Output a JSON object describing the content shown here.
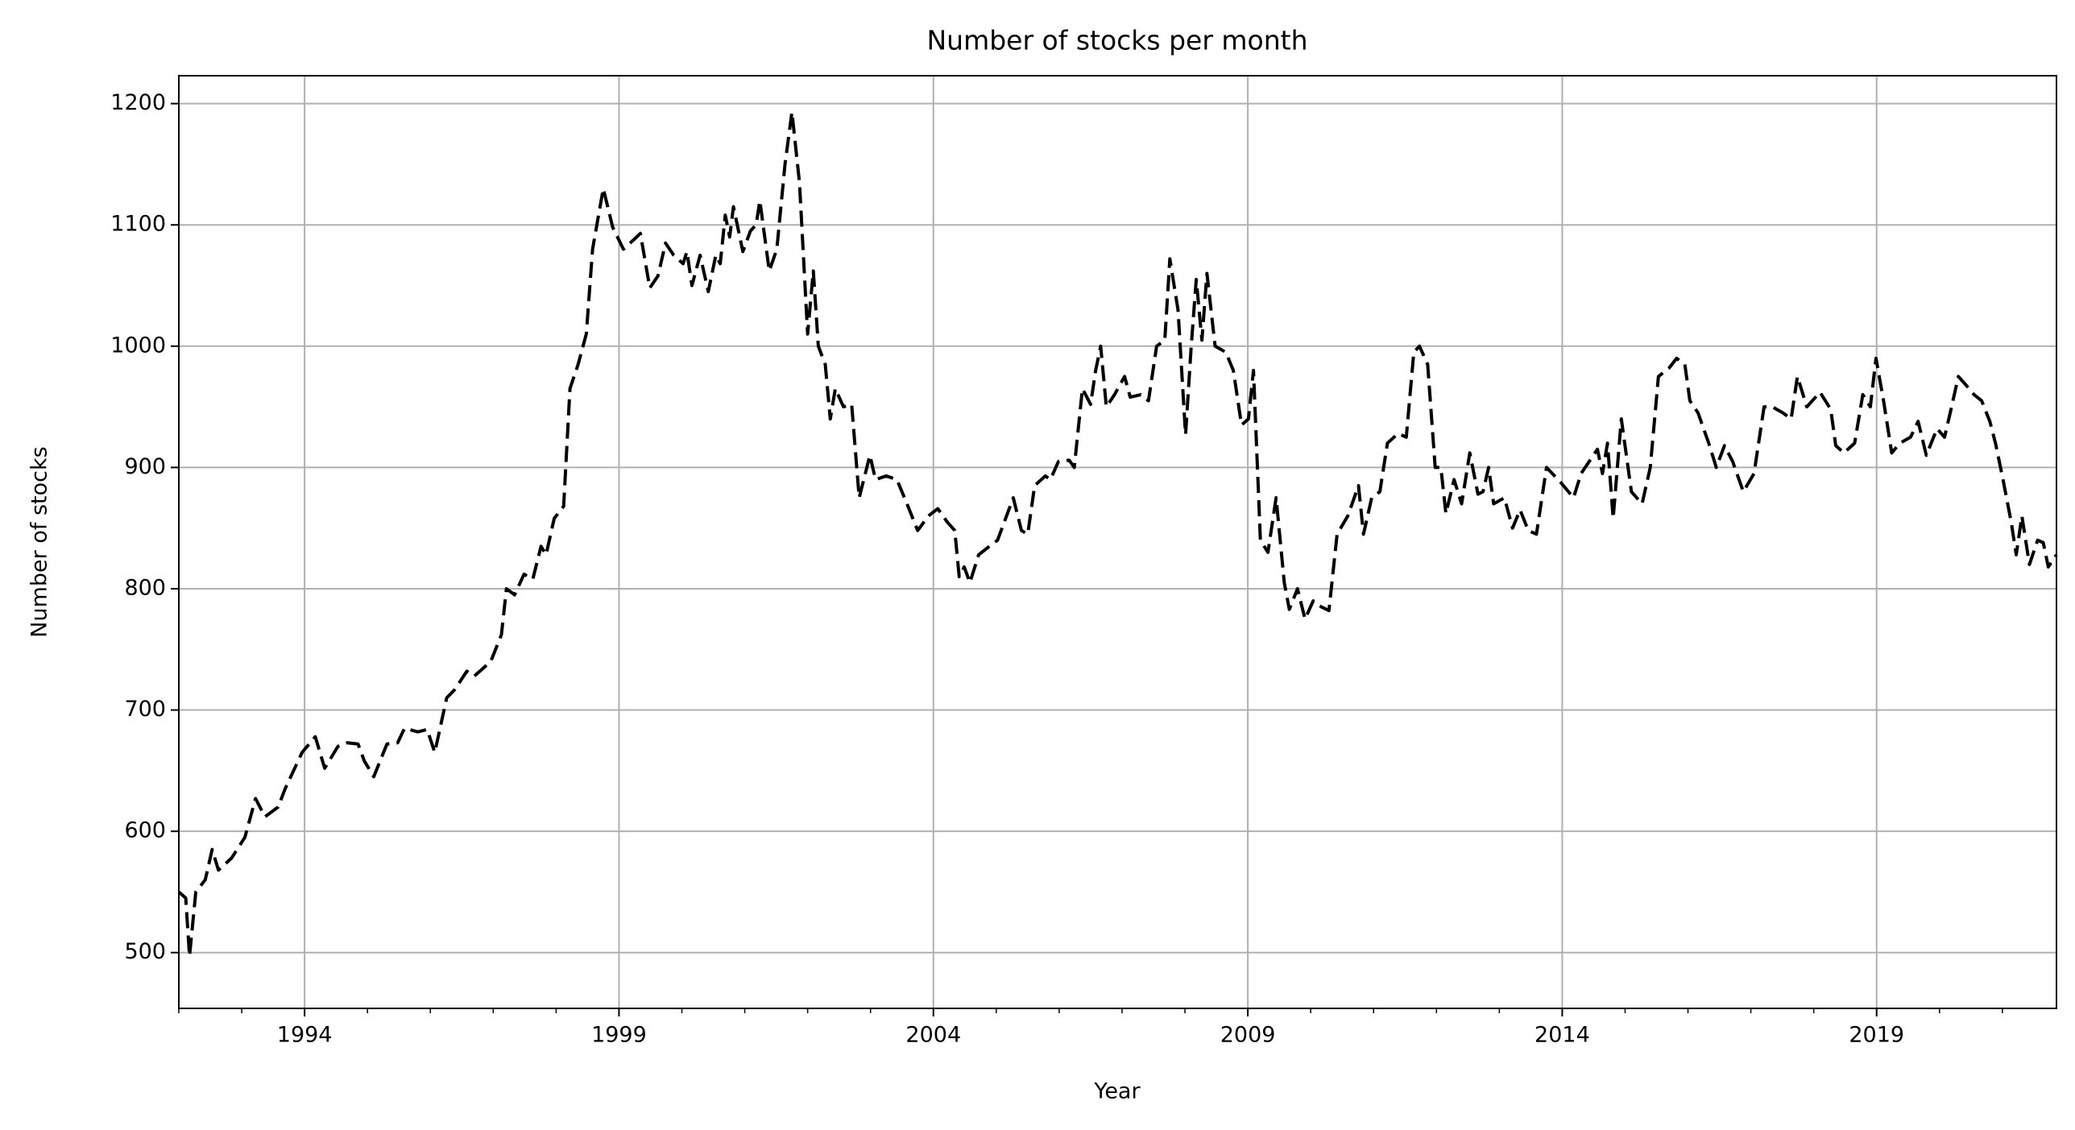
{
  "chart_data": {
    "type": "line",
    "title": "Number of stocks per month",
    "xlabel": "Year",
    "ylabel": "Number of stocks",
    "x": [
      1992.0,
      1992.11,
      1992.17,
      1992.27,
      1992.42,
      1992.53,
      1992.63,
      1992.84,
      1993.05,
      1993.22,
      1993.37,
      1993.58,
      1993.69,
      1993.96,
      1994.17,
      1994.32,
      1994.53,
      1994.68,
      1994.85,
      1994.95,
      1995.1,
      1995.31,
      1995.48,
      1995.59,
      1995.8,
      1995.95,
      1996.07,
      1996.26,
      1996.39,
      1996.58,
      1996.7,
      1996.96,
      1997.13,
      1997.21,
      1997.34,
      1997.49,
      1997.63,
      1997.76,
      1997.84,
      1997.97,
      1998.12,
      1998.22,
      1998.35,
      1998.48,
      1998.58,
      1998.75,
      1998.9,
      1999.07,
      1999.24,
      1999.34,
      1999.49,
      1999.62,
      1999.74,
      1999.87,
      2000.02,
      2000.08,
      2000.16,
      2000.29,
      2000.42,
      2000.54,
      2000.61,
      2000.69,
      2000.76,
      2000.82,
      2000.97,
      2001.09,
      2001.18,
      2001.24,
      2001.39,
      2001.51,
      2001.64,
      2001.75,
      2001.87,
      2002.0,
      2002.09,
      2002.17,
      2002.28,
      2002.36,
      2002.44,
      2002.57,
      2002.7,
      2002.82,
      2002.99,
      2003.08,
      2003.25,
      2003.42,
      2003.58,
      2003.75,
      2003.92,
      2004.07,
      2004.22,
      2004.34,
      2004.41,
      2004.49,
      2004.58,
      2004.72,
      2004.89,
      2005.02,
      2005.27,
      2005.4,
      2005.5,
      2005.61,
      2005.78,
      2005.86,
      2005.99,
      2006.16,
      2006.24,
      2006.37,
      2006.5,
      2006.58,
      2006.66,
      2006.75,
      2006.88,
      2007.04,
      2007.13,
      2007.3,
      2007.42,
      2007.55,
      2007.68,
      2007.76,
      2007.89,
      2008.01,
      2008.1,
      2008.18,
      2008.27,
      2008.35,
      2008.48,
      2008.65,
      2008.77,
      2008.9,
      2009.01,
      2009.09,
      2009.2,
      2009.32,
      2009.45,
      2009.58,
      2009.66,
      2009.79,
      2009.91,
      2010.04,
      2010.17,
      2010.29,
      2010.42,
      2010.59,
      2010.76,
      2010.84,
      2010.97,
      2011.1,
      2011.22,
      2011.39,
      2011.52,
      2011.64,
      2011.73,
      2011.86,
      2011.98,
      2012.07,
      2012.15,
      2012.28,
      2012.4,
      2012.53,
      2012.66,
      2012.74,
      2012.83,
      2012.91,
      2013.08,
      2013.21,
      2013.33,
      2013.46,
      2013.59,
      2013.75,
      2013.97,
      2014.18,
      2014.3,
      2014.43,
      2014.56,
      2014.64,
      2014.72,
      2014.81,
      2014.94,
      2015.1,
      2015.27,
      2015.4,
      2015.53,
      2015.7,
      2015.82,
      2015.95,
      2016.03,
      2016.16,
      2016.33,
      2016.45,
      2016.58,
      2016.71,
      2016.88,
      2017.05,
      2017.21,
      2017.34,
      2017.51,
      2017.64,
      2017.74,
      2017.89,
      2018.1,
      2018.27,
      2018.35,
      2018.48,
      2018.65,
      2018.78,
      2018.9,
      2018.99,
      2019.11,
      2019.24,
      2019.37,
      2019.54,
      2019.66,
      2019.79,
      2019.96,
      2020.08,
      2020.17,
      2020.3,
      2020.42,
      2020.55,
      2020.67,
      2020.8,
      2020.89,
      2021.01,
      2021.14,
      2021.22,
      2021.31,
      2021.43,
      2021.56,
      2021.65,
      2021.73,
      2021.86
    ],
    "values": [
      550,
      545,
      497,
      550,
      560,
      585,
      568,
      578,
      595,
      627,
      612,
      620,
      635,
      665,
      678,
      652,
      670,
      673,
      672,
      658,
      645,
      672,
      673,
      685,
      682,
      684,
      665,
      710,
      717,
      732,
      728,
      740,
      762,
      800,
      795,
      812,
      808,
      835,
      828,
      858,
      868,
      965,
      985,
      1010,
      1080,
      1130,
      1098,
      1080,
      1088,
      1093,
      1048,
      1058,
      1085,
      1075,
      1068,
      1078,
      1050,
      1075,
      1045,
      1075,
      1068,
      1108,
      1090,
      1115,
      1078,
      1095,
      1100,
      1120,
      1062,
      1080,
      1150,
      1193,
      1135,
      1010,
      1062,
      1000,
      985,
      940,
      965,
      950,
      952,
      875,
      910,
      890,
      893,
      890,
      870,
      848,
      860,
      866,
      855,
      848,
      810,
      818,
      805,
      828,
      835,
      840,
      875,
      848,
      845,
      885,
      893,
      890,
      905,
      906,
      900,
      965,
      952,
      980,
      1000,
      950,
      960,
      975,
      958,
      960,
      955,
      1000,
      1005,
      1072,
      1030,
      927,
      1000,
      1055,
      1005,
      1060,
      1000,
      995,
      980,
      935,
      940,
      980,
      840,
      830,
      875,
      805,
      783,
      800,
      775,
      790,
      785,
      782,
      845,
      860,
      885,
      845,
      875,
      880,
      920,
      928,
      925,
      995,
      1000,
      985,
      900,
      900,
      862,
      890,
      870,
      912,
      878,
      880,
      900,
      870,
      875,
      850,
      865,
      848,
      845,
      900,
      888,
      875,
      895,
      905,
      915,
      895,
      920,
      858,
      940,
      880,
      870,
      900,
      975,
      982,
      990,
      985,
      955,
      945,
      920,
      900,
      918,
      905,
      880,
      895,
      950,
      950,
      945,
      940,
      975,
      950,
      962,
      948,
      918,
      912,
      920,
      960,
      950,
      990,
      955,
      912,
      920,
      925,
      938,
      910,
      932,
      925,
      945,
      975,
      968,
      960,
      955,
      938,
      920,
      890,
      855,
      828,
      860,
      820,
      840,
      838,
      818,
      828
    ],
    "color": "#000000",
    "line_style": "dashed",
    "xlim": [
      1992,
      2021.86
    ],
    "xticks": [
      1994,
      1999,
      2004,
      2009,
      2014,
      2019
    ],
    "ylim": [
      454,
      1223
    ],
    "yticks": [
      500,
      600,
      700,
      800,
      900,
      1000,
      1100,
      1200
    ],
    "grid": true
  }
}
